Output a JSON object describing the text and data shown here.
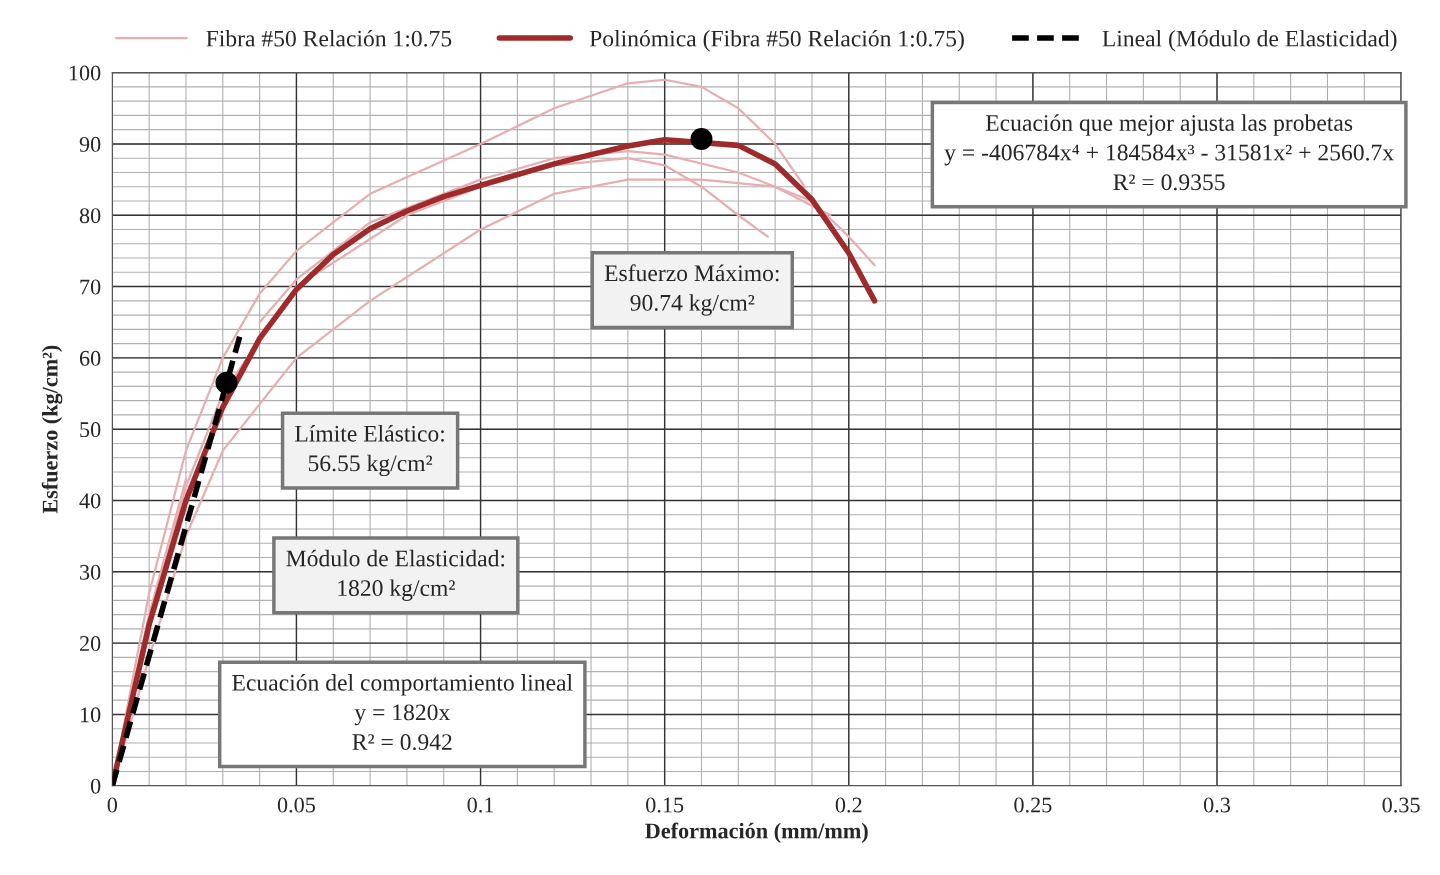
{
  "chart_data": {
    "type": "line",
    "xlabel": "Deformación (mm/mm)",
    "ylabel": "Esfuerzo (kg/cm²)",
    "xlim": [
      0,
      0.35
    ],
    "xticks": [
      0,
      0.05,
      0.1,
      0.15,
      0.2,
      0.25,
      0.3,
      0.35
    ],
    "ylim": [
      0,
      100
    ],
    "yticks": [
      0,
      10,
      20,
      30,
      40,
      50,
      60,
      70,
      80,
      90,
      100
    ],
    "grid": true,
    "legend": "top",
    "marker": "none",
    "series": [
      {
        "name": "Fibra #50 Relación 1:0.75",
        "color": "#e6aeae",
        "x": [
          0,
          0.01,
          0.02,
          0.03,
          0.04,
          0.05,
          0.07,
          0.1,
          0.12,
          0.14,
          0.15,
          0.16,
          0.17,
          0.18,
          0.188
        ],
        "values": [
          0,
          27,
          47,
          60,
          69,
          75,
          83,
          90,
          95,
          98.5,
          99,
          98,
          95,
          90,
          84
        ]
      },
      {
        "color": "#e6aeae",
        "x": [
          0,
          0.01,
          0.02,
          0.03,
          0.04,
          0.05,
          0.07,
          0.1,
          0.12,
          0.14,
          0.15,
          0.17,
          0.19,
          0.2,
          0.207
        ],
        "values": [
          0,
          24,
          43,
          null,
          65,
          71,
          79,
          85,
          88,
          89,
          88.5,
          86,
          82,
          77,
          73
        ]
      },
      {
        "color": "#e6aeae",
        "x": [
          0,
          0.01,
          0.02,
          0.03,
          0.05,
          0.07,
          0.1,
          0.12,
          0.14,
          0.16,
          0.18,
          0.195
        ],
        "values": [
          0,
          18,
          35,
          47,
          60,
          68,
          78,
          83,
          85,
          85,
          84,
          80
        ]
      },
      {
        "color": "#e6aeae",
        "x": [
          0,
          0.01,
          0.02,
          0.03,
          0.05,
          0.08,
          0.1,
          0.12,
          0.14,
          0.15,
          0.16,
          0.17,
          0.178
        ],
        "values": [
          0,
          23,
          42,
          55,
          70,
          80,
          84,
          87,
          88,
          87,
          84,
          80,
          77
        ]
      },
      {
        "name": "Polinómica (Fibra #50 Relación 1:0.75)",
        "color": "#9e2a2b",
        "x": [
          0,
          0.01,
          0.02,
          0.03,
          0.04,
          0.05,
          0.06,
          0.07,
          0.08,
          0.09,
          0.1,
          0.11,
          0.12,
          0.13,
          0.14,
          0.15,
          0.17,
          0.18,
          0.19,
          0.2,
          0.207
        ],
        "values": [
          0,
          22.6,
          40,
          53.1,
          62.7,
          69.6,
          74.5,
          78.1,
          80.6,
          82.6,
          84.2,
          85.7,
          87.2,
          88.5,
          89.7,
          90.6,
          89.8,
          87.2,
          82.2,
          74.7,
          68
        ]
      },
      {
        "name": "Lineal (Módulo de Elasticidad)",
        "color": "#000000",
        "line_style": "dashed",
        "x": [
          0,
          0.035
        ],
        "values": [
          0,
          63.7
        ]
      },
      {
        "type": "scatter",
        "color": "#000000",
        "marker": "circle",
        "x": [
          0.031,
          0.16
        ],
        "values": [
          56.5,
          90.7
        ]
      }
    ],
    "annotations": [
      "Límite Elástico:\n56.55 kg/cm²",
      "Esfuerzo Máximo:\n90.74 kg/cm²",
      "Módulo de Elasticidad:\n1820 kg/cm²",
      "Ecuación del comportamiento lineal\ny = 1820x\nR² = 0.942",
      "Ecuación que mejor ajusta las probetas\ny = -406784x⁴ + 184584x³ - 31581x² + 2560.7x\nR² = 0.9355"
    ]
  }
}
